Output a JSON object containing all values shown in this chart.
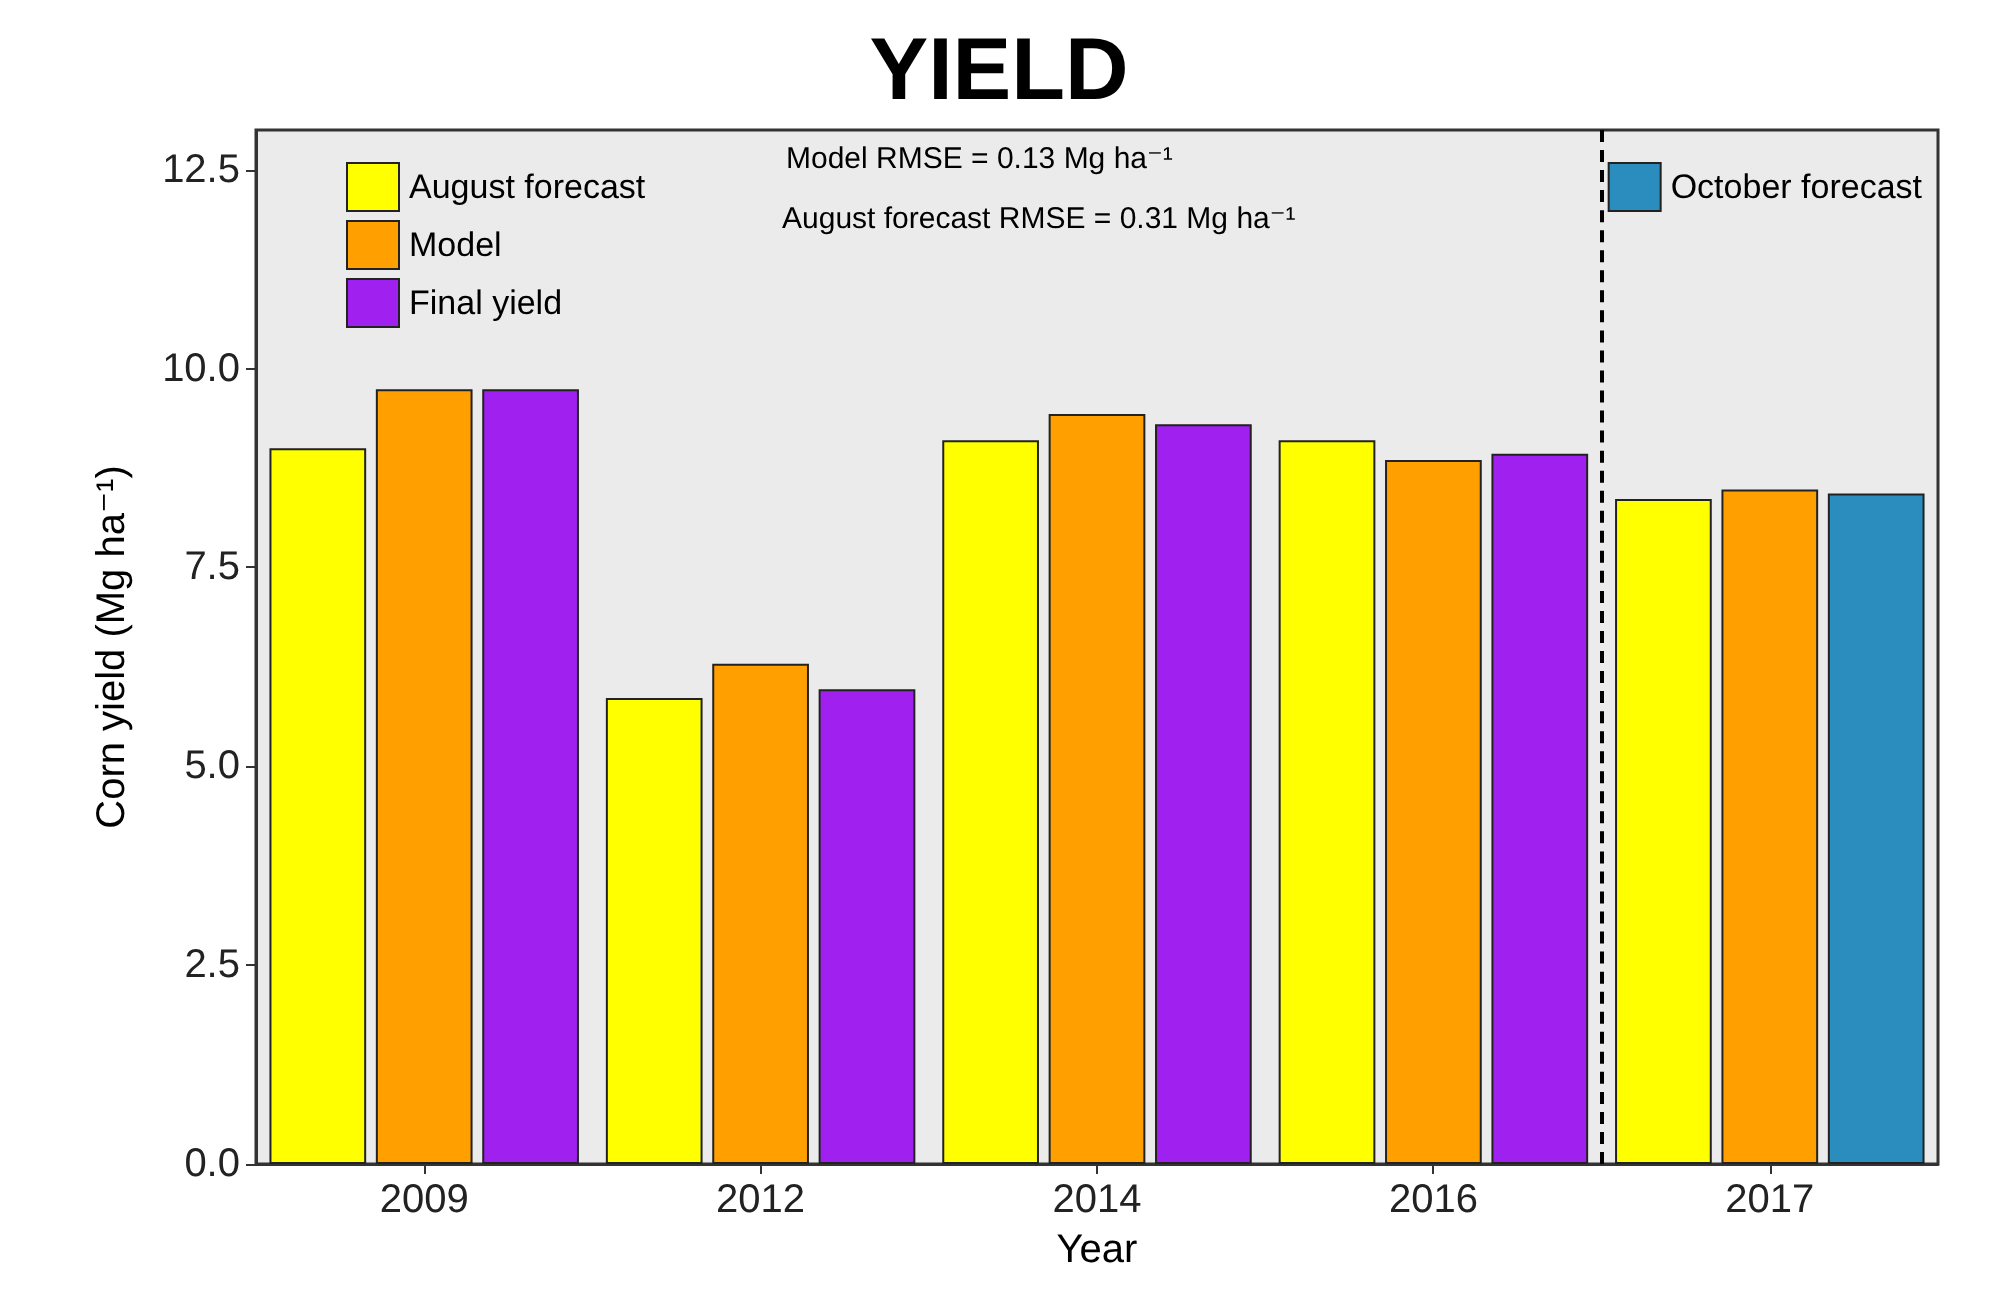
{
  "chart_data": {
    "type": "bar",
    "title": "YIELD",
    "xlabel": "Year",
    "ylabel": "Corn yield (Mg ha⁻¹)",
    "categories": [
      "2009",
      "2012",
      "2014",
      "2016",
      "2017"
    ],
    "series": [
      {
        "name": "August forecast",
        "color": "#ffff00",
        "values": [
          9.0,
          5.86,
          9.1,
          9.1,
          8.36
        ]
      },
      {
        "name": "Model",
        "color": "#ffa000",
        "values": [
          9.74,
          6.29,
          9.43,
          8.85,
          8.48
        ]
      },
      {
        "name": "Final yield",
        "color": "#a020f0",
        "values": [
          9.74,
          5.97,
          9.3,
          8.93,
          null
        ]
      },
      {
        "name": "October forecast",
        "color": "#2b8cbe",
        "values": [
          null,
          null,
          null,
          null,
          8.43
        ]
      }
    ],
    "ylim": [
      0,
      13
    ],
    "yticks": [
      {
        "value": 0,
        "label": "0.0"
      },
      {
        "value": 2.5,
        "label": "2.5"
      },
      {
        "value": 5,
        "label": "5.0"
      },
      {
        "value": 7.5,
        "label": "7.5"
      },
      {
        "value": 10,
        "label": "10.0"
      },
      {
        "value": 12.5,
        "label": "12.5"
      }
    ],
    "annotations": [
      "Model RMSE = 0.13 Mg ha⁻¹",
      "August forecast RMSE = 0.31 Mg ha⁻¹"
    ],
    "grid": false,
    "legend": "top left"
  }
}
